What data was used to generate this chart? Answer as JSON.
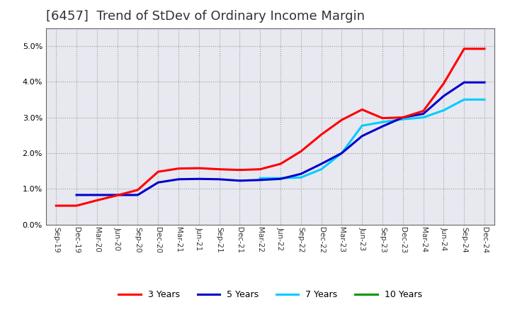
{
  "title": "[6457]  Trend of StDev of Ordinary Income Margin",
  "title_fontsize": 13,
  "background_color": "#ffffff",
  "plot_background": "#e8e8f0",
  "grid_color": "#999999",
  "ylim": [
    0.0,
    0.055
  ],
  "yticks": [
    0.0,
    0.01,
    0.02,
    0.03,
    0.04,
    0.05
  ],
  "x_labels": [
    "Sep-19",
    "Dec-19",
    "Mar-20",
    "Jun-20",
    "Sep-20",
    "Dec-20",
    "Mar-21",
    "Jun-21",
    "Sep-21",
    "Dec-21",
    "Mar-22",
    "Jun-22",
    "Sep-22",
    "Dec-22",
    "Mar-23",
    "Jun-23",
    "Sep-23",
    "Dec-23",
    "Mar-24",
    "Jun-24",
    "Sep-24",
    "Dec-24"
  ],
  "series_3y": [
    0.0053,
    0.0053,
    0.0068,
    0.0082,
    0.0097,
    0.0148,
    0.0157,
    0.0158,
    0.0155,
    0.0153,
    0.0155,
    0.017,
    0.0205,
    0.0252,
    0.0293,
    0.0322,
    0.0298,
    0.03,
    0.0318,
    0.0395,
    0.0492,
    0.0492
  ],
  "series_5y": [
    null,
    0.0083,
    0.0083,
    0.0083,
    0.0083,
    0.0118,
    0.0127,
    0.0128,
    0.0127,
    0.0123,
    0.0125,
    0.0128,
    0.0142,
    0.017,
    0.02,
    0.0248,
    0.0275,
    0.03,
    0.031,
    0.036,
    0.0398,
    0.0398
  ],
  "series_7y": [
    null,
    null,
    null,
    null,
    null,
    null,
    null,
    null,
    null,
    null,
    0.013,
    0.013,
    0.0132,
    0.0155,
    0.02,
    0.0277,
    0.0287,
    0.0295,
    0.03,
    0.032,
    0.035,
    0.035
  ],
  "series_10y": [
    null,
    null,
    null,
    null,
    null,
    null,
    null,
    null,
    null,
    null,
    null,
    null,
    null,
    null,
    null,
    null,
    null,
    null,
    null,
    null,
    null,
    null
  ],
  "legend_labels": [
    "3 Years",
    "5 Years",
    "7 Years",
    "10 Years"
  ],
  "legend_colors": [
    "#ff0000",
    "#0000cc",
    "#00ccff",
    "#009900"
  ]
}
